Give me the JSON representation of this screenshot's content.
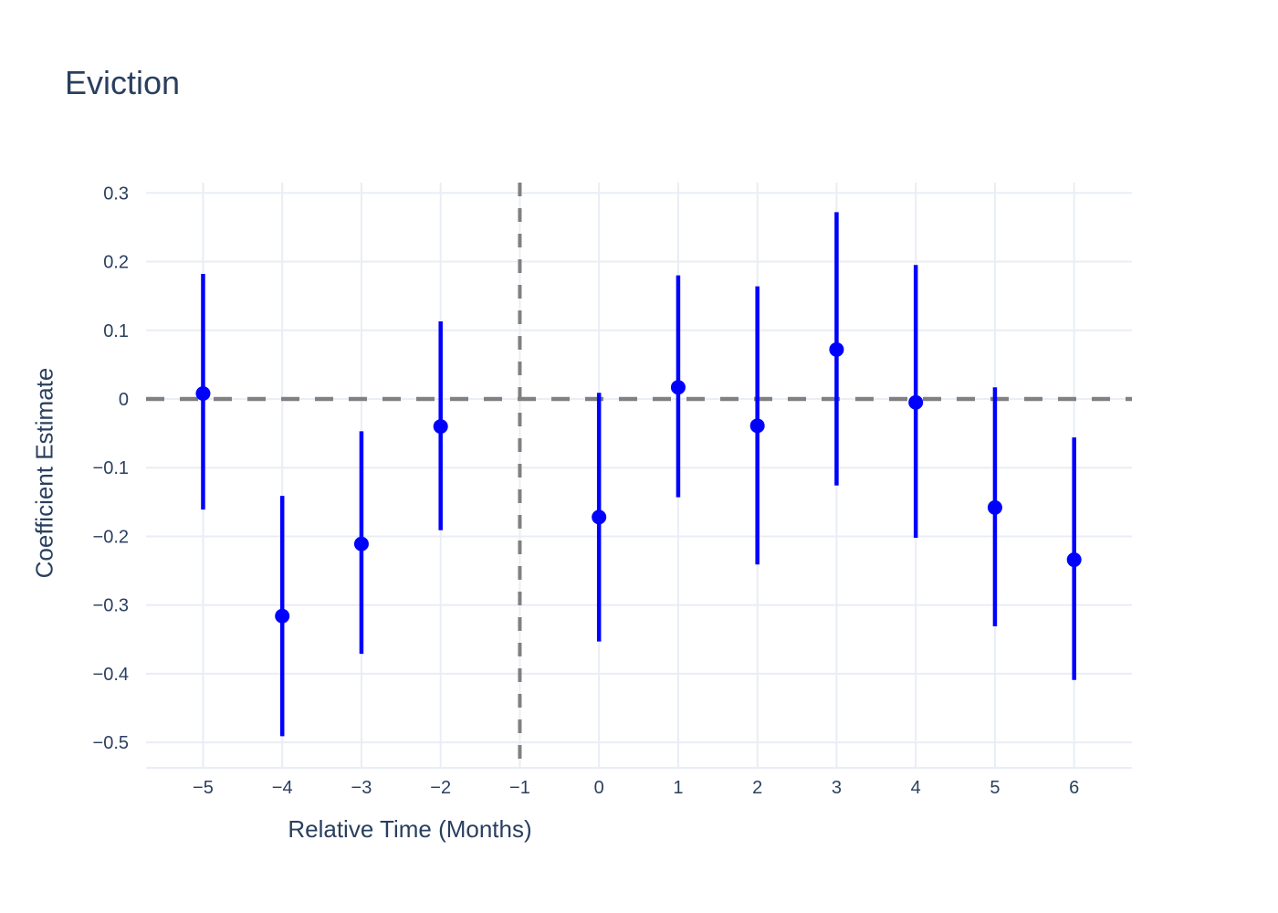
{
  "colors": {
    "background": "#ffffff",
    "point": "#0000ff",
    "error_bar": "#0000ff",
    "reference_line": "#808080",
    "grid": "#e9edf5",
    "text": "#2a3f5f"
  },
  "chart_data": {
    "type": "scatter",
    "title": "Eviction",
    "xlabel": "Relative Time (Months)",
    "ylabel": "Coefficient Estimate",
    "x_ticks": [
      -5,
      -4,
      -3,
      -2,
      -1,
      0,
      1,
      2,
      3,
      4,
      5,
      6
    ],
    "y_ticks": [
      0.3,
      0.2,
      0.1,
      0,
      -0.1,
      -0.2,
      -0.3,
      -0.4,
      -0.5
    ],
    "xlim": [
      -5.72,
      6.73
    ],
    "ylim": [
      -0.537,
      0.315
    ],
    "grid": true,
    "legend_position": "none",
    "reference_lines": {
      "vertical_x": -1,
      "horizontal_y": 0,
      "style": "dashed",
      "color": "#808080"
    },
    "omitted_period": -1,
    "series": [
      {
        "name": "coefficient-estimates",
        "color": "#0000ff",
        "points": [
          {
            "x": -5,
            "y": 0.008,
            "ci_low": -0.161,
            "ci_high": 0.182
          },
          {
            "x": -4,
            "y": -0.316,
            "ci_low": -0.491,
            "ci_high": -0.141
          },
          {
            "x": -3,
            "y": -0.211,
            "ci_low": -0.371,
            "ci_high": -0.047
          },
          {
            "x": -2,
            "y": -0.04,
            "ci_low": -0.191,
            "ci_high": 0.113
          },
          {
            "x": 0,
            "y": -0.172,
            "ci_low": -0.353,
            "ci_high": 0.009
          },
          {
            "x": 1,
            "y": 0.017,
            "ci_low": -0.143,
            "ci_high": 0.18
          },
          {
            "x": 2,
            "y": -0.039,
            "ci_low": -0.241,
            "ci_high": 0.164
          },
          {
            "x": 3,
            "y": 0.072,
            "ci_low": -0.126,
            "ci_high": 0.272
          },
          {
            "x": 4,
            "y": -0.005,
            "ci_low": -0.202,
            "ci_high": 0.195
          },
          {
            "x": 5,
            "y": -0.158,
            "ci_low": -0.331,
            "ci_high": 0.017
          },
          {
            "x": 6,
            "y": -0.234,
            "ci_low": -0.409,
            "ci_high": -0.056
          }
        ]
      }
    ]
  }
}
